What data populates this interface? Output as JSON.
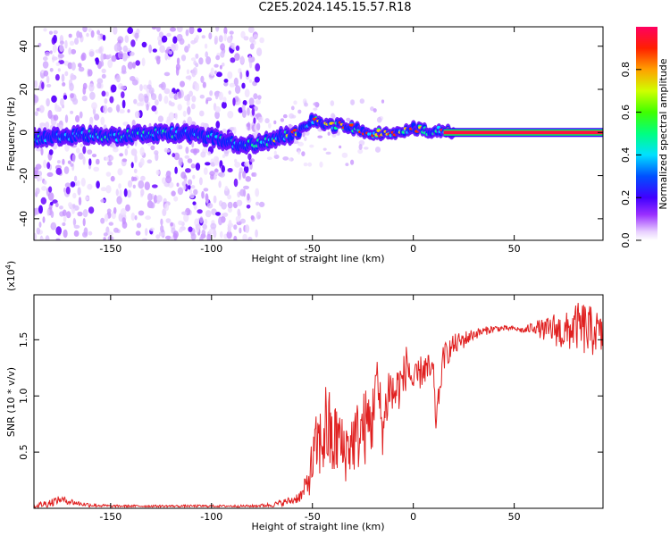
{
  "title": "C2E5.2024.145.15.57.R18",
  "chart_data": [
    {
      "type": "heatmap",
      "xlabel": "Height of straight line (km)",
      "ylabel": "Frequency (Hz)",
      "xlim": [
        -188,
        94
      ],
      "ylim": [
        -50,
        49
      ],
      "xticks": [
        -150,
        -100,
        -50,
        0,
        50
      ],
      "xtick_labels": [
        "-150",
        "-100",
        "-50",
        "0",
        "50"
      ],
      "yticks": [
        -40,
        -20,
        0,
        20,
        40
      ],
      "ytick_labels": [
        "-40",
        "-20",
        "0",
        "20",
        "40"
      ],
      "colorbar": {
        "label": "Normalized spectral amplitude",
        "range": [
          0,
          1
        ],
        "ticks": [
          0.0,
          0.2,
          0.4,
          0.6,
          0.8
        ],
        "tick_labels": [
          "0.0",
          "0.2",
          "0.4",
          "0.6",
          "0.8"
        ]
      },
      "ridge_frequency": {
        "x": [
          -188,
          -175,
          -160,
          -150,
          -140,
          -130,
          -125,
          -110,
          -100,
          -90,
          -80,
          -70,
          -60,
          -55,
          -50,
          -45,
          -40,
          -35,
          -30,
          -25,
          -20,
          -10,
          -5,
          0,
          5,
          10,
          20,
          94
        ],
        "y": [
          -3,
          -2,
          -1,
          -2,
          -1,
          -1,
          0,
          -1,
          -2,
          -5,
          -6,
          -3,
          -1,
          1,
          6,
          4,
          3,
          4,
          2,
          1,
          0,
          -1,
          0,
          2,
          1,
          1,
          0,
          0
        ]
      },
      "noise_region_x": [
        -188,
        -75
      ],
      "grid": false,
      "legend": "none"
    },
    {
      "type": "line",
      "xlabel": "Height of straight line (km)",
      "ylabel": "SNR (10 * v/v)",
      "y_multiplier_label": "(x10",
      "y_multiplier_exp": "4",
      "y_multiplier_close": ")",
      "xlim": [
        -188,
        94
      ],
      "ylim": [
        0,
        1.9
      ],
      "xticks": [
        -150,
        -100,
        -50,
        0,
        50
      ],
      "xtick_labels": [
        "-150",
        "-100",
        "-50",
        "0",
        "50"
      ],
      "yticks": [
        0.5,
        1.0,
        1.5
      ],
      "ytick_labels": [
        "0.5",
        "1.0",
        "1.5"
      ],
      "color": "#e02020",
      "series": [
        {
          "x": [
            -188,
            -180,
            -175,
            -170,
            -165,
            -160,
            -150,
            -140,
            -120,
            -100,
            -80,
            -70,
            -65,
            -60,
            -55,
            -52,
            -50,
            -48,
            -45,
            -43,
            -40,
            -37,
            -35,
            -30,
            -25,
            -20,
            -19,
            -17,
            -15,
            -12,
            -10,
            -5,
            -3,
            0,
            5,
            10,
            11,
            15,
            20,
            25,
            30,
            40,
            50,
            55,
            60,
            65,
            70,
            75,
            80,
            85,
            88,
            90,
            94
          ],
          "y": [
            0.02,
            0.05,
            0.08,
            0.06,
            0.04,
            0.03,
            0.02,
            0.02,
            0.02,
            0.02,
            0.02,
            0.03,
            0.05,
            0.07,
            0.12,
            0.25,
            0.4,
            0.55,
            0.6,
            0.75,
            0.55,
            0.65,
            0.5,
            0.6,
            0.7,
            0.8,
            1.2,
            0.95,
            0.7,
            1.1,
            1.0,
            1.15,
            1.3,
            1.1,
            1.25,
            1.2,
            0.75,
            1.35,
            1.45,
            1.5,
            1.55,
            1.6,
            1.6,
            1.58,
            1.62,
            1.58,
            1.6,
            1.55,
            1.62,
            1.6,
            1.55,
            1.6,
            1.5
          ],
          "noise_amplitude": [
            0.02,
            0.04,
            0.03,
            0.03,
            0.02,
            0.02,
            0.01,
            0.01,
            0.01,
            0.01,
            0.01,
            0.02,
            0.03,
            0.04,
            0.06,
            0.15,
            0.25,
            0.3,
            0.35,
            0.45,
            0.35,
            0.35,
            0.3,
            0.3,
            0.35,
            0.35,
            0.3,
            0.3,
            0.25,
            0.25,
            0.25,
            0.2,
            0.2,
            0.15,
            0.15,
            0.15,
            0.1,
            0.12,
            0.1,
            0.08,
            0.05,
            0.03,
            0.02,
            0.03,
            0.06,
            0.1,
            0.15,
            0.18,
            0.2,
            0.25,
            0.25,
            0.2,
            0.18
          ]
        }
      ],
      "grid": false,
      "legend": "none"
    }
  ]
}
